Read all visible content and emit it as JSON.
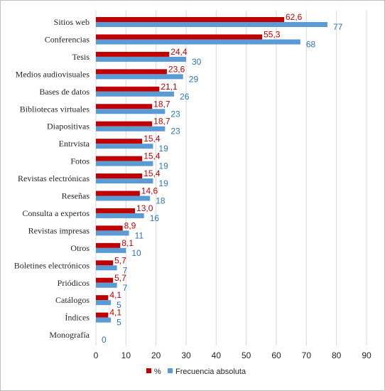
{
  "chart_data": {
    "type": "bar",
    "orientation": "horizontal",
    "categories": [
      "Sitios web",
      "Conferencias",
      "Tesis",
      "Medios audiovisuales",
      "Bases de datos",
      "Bibliotecas virtuales",
      "Diapositivas",
      "Entrvista",
      "Fotos",
      "Revistas electrónicas",
      "Reseñas",
      "Consulta a expertos",
      "Revistas impresas",
      "Otros",
      "Boletines electrónicos",
      "Priódicos",
      "Catálogos",
      "Índices",
      "Monografía"
    ],
    "series": [
      {
        "name": "%",
        "color": "#c00000",
        "values": [
          62.6,
          55.3,
          24.4,
          23.6,
          21.1,
          18.7,
          18.7,
          15.4,
          15.4,
          15.4,
          14.6,
          13.0,
          8.9,
          8.1,
          5.7,
          5.7,
          4.1,
          4.1,
          null
        ],
        "labels": [
          "62,6",
          "55,3",
          "24,4",
          "23,6",
          "21,1",
          "18,7",
          "18,7",
          "15,4",
          "15,4",
          "15,4",
          "14,6",
          "13,0",
          "8,9",
          "8,1",
          "5,7",
          "5,7",
          "4,1",
          "4,1",
          ""
        ]
      },
      {
        "name": "Frecuencia absoluta",
        "color": "#5b9bd5",
        "label_color": "#2e75b6",
        "values": [
          77,
          68,
          30,
          29,
          26,
          23,
          23,
          19,
          19,
          19,
          18,
          16,
          11,
          10,
          7,
          7,
          5,
          5,
          0
        ],
        "labels": [
          "77",
          "68",
          "30",
          "29",
          "26",
          "23",
          "23",
          "19",
          "19",
          "19",
          "18",
          "16",
          "11",
          "10",
          "7",
          "7",
          "5",
          "5",
          "0"
        ]
      }
    ],
    "xlim": [
      0,
      90
    ],
    "x_ticks": [
      "0",
      "10",
      "20",
      "30",
      "40",
      "50",
      "60",
      "70",
      "80",
      "90"
    ],
    "x_tick_values": [
      0,
      10,
      20,
      30,
      40,
      50,
      60,
      70,
      80,
      90
    ],
    "grid": "vertical",
    "grid_color": "#d9d9d9",
    "legend_position": "bottom"
  }
}
